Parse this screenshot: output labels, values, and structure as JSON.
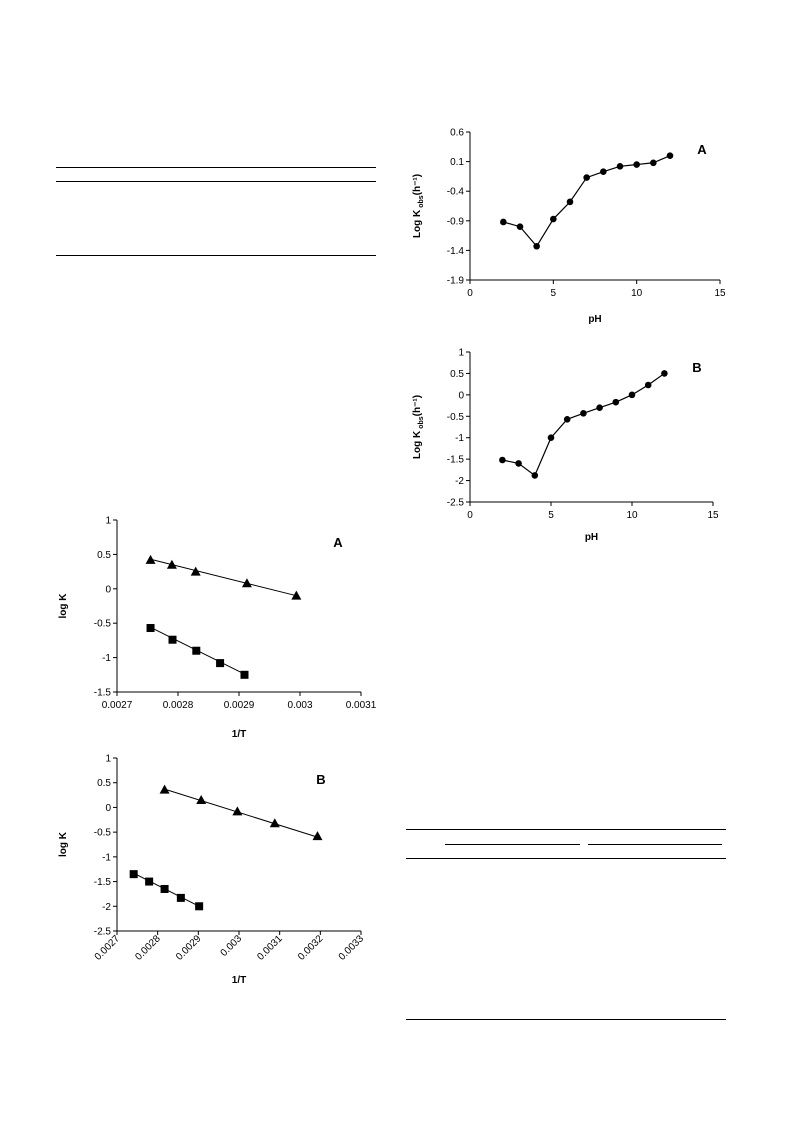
{
  "chart_data": [
    {
      "id": "ph-a",
      "type": "line",
      "panel_label": "A",
      "xlabel": "pH",
      "ylabel": "Log K",
      "ylabel_sub": "obs",
      "ylabel_unit": "(h⁻¹)",
      "xlim": [
        0,
        15
      ],
      "ylim": [
        -1.9,
        0.6
      ],
      "xticks": [
        0,
        5,
        10,
        15
      ],
      "yticks": [
        0.6,
        0.1,
        -0.4,
        -0.9,
        -1.4,
        -1.9
      ],
      "ytick_labels": [
        "0.6",
        "0.1",
        "-0.4",
        "-0.9",
        "-1.4",
        "-1.9"
      ],
      "grid": false,
      "series": [
        {
          "marker": "circle",
          "x": [
            2,
            3,
            4,
            5,
            6,
            7,
            8,
            9,
            10,
            11,
            12
          ],
          "y": [
            -0.92,
            -1.0,
            -1.33,
            -0.87,
            -0.58,
            -0.17,
            -0.07,
            0.02,
            0.05,
            0.08,
            0.2
          ]
        }
      ]
    },
    {
      "id": "ph-b",
      "type": "line",
      "panel_label": "B",
      "xlabel": "pH",
      "ylabel": "Log K",
      "ylabel_sub": "obs",
      "ylabel_unit": "(h⁻¹)",
      "xlim": [
        0,
        15
      ],
      "ylim": [
        -2.5,
        1
      ],
      "xticks": [
        0,
        5,
        10,
        15
      ],
      "yticks": [
        1,
        0.5,
        0,
        -0.5,
        -1,
        -1.5,
        -2,
        -2.5
      ],
      "ytick_labels": [
        "1",
        "0.5",
        "0",
        "-0.5",
        "-1",
        "-1.5",
        "-2",
        "-2.5"
      ],
      "grid": false,
      "series": [
        {
          "marker": "circle",
          "x": [
            2,
            3,
            4,
            5,
            6,
            7,
            8,
            9,
            10,
            11,
            12
          ],
          "y": [
            -1.52,
            -1.6,
            -1.88,
            -1.0,
            -0.57,
            -0.43,
            -0.3,
            -0.17,
            0.0,
            0.23,
            0.5
          ]
        }
      ]
    },
    {
      "id": "arrhenius-a",
      "type": "scatter",
      "panel_label": "A",
      "xlabel": "1/T",
      "ylabel": "log K",
      "xlim": [
        0.0027,
        0.0031
      ],
      "ylim": [
        -1.5,
        1
      ],
      "xticks": [
        0.0027,
        0.0028,
        0.0029,
        0.003,
        0.0031
      ],
      "xtick_labels": [
        "0.0027",
        "0.0028",
        "0.0029",
        "0.003",
        "0.0031"
      ],
      "yticks": [
        1,
        0.5,
        0,
        -0.5,
        -1,
        -1.5
      ],
      "ytick_labels": [
        "1",
        "0.5",
        "0",
        "-0.5",
        "-1",
        "-1.5"
      ],
      "rotate_xticks": false,
      "grid": false,
      "series": [
        {
          "marker": "triangle",
          "x": [
            0.002755,
            0.00279,
            0.002829,
            0.002913,
            0.002994
          ],
          "y": [
            0.42,
            0.35,
            0.25,
            0.08,
            -0.1
          ],
          "fit": [
            [
              0.002755,
              0.43
            ],
            [
              0.002994,
              -0.1
            ]
          ]
        },
        {
          "marker": "square",
          "x": [
            0.002755,
            0.002791,
            0.00283,
            0.002869,
            0.002909
          ],
          "y": [
            -0.57,
            -0.74,
            -0.9,
            -1.08,
            -1.25
          ],
          "fit": [
            [
              0.002755,
              -0.56
            ],
            [
              0.002909,
              -1.24
            ]
          ]
        }
      ]
    },
    {
      "id": "arrhenius-b",
      "type": "scatter",
      "panel_label": "B",
      "xlabel": "1/T",
      "ylabel": "log K",
      "xlim": [
        0.0027,
        0.0033
      ],
      "ylim": [
        -2.5,
        1
      ],
      "xticks": [
        0.0027,
        0.0028,
        0.0029,
        0.003,
        0.0031,
        0.0032,
        0.0033
      ],
      "xtick_labels": [
        "0.0027",
        "0.0028",
        "0.0029",
        "0.003",
        "0.0031",
        "0.0032",
        "0.0033"
      ],
      "yticks": [
        1,
        0.5,
        0,
        -0.5,
        -1,
        -1.5,
        -2,
        -2.5
      ],
      "ytick_labels": [
        "1",
        "0.5",
        "0",
        "-0.5",
        "-1",
        "-1.5",
        "-2",
        "-2.5"
      ],
      "rotate_xticks": true,
      "grid": false,
      "series": [
        {
          "marker": "triangle",
          "x": [
            0.002817,
            0.002907,
            0.002996,
            0.003088,
            0.003193
          ],
          "y": [
            0.36,
            0.15,
            -0.08,
            -0.32,
            -0.58
          ],
          "fit": [
            [
              0.002817,
              0.37
            ],
            [
              0.003193,
              -0.6
            ]
          ]
        },
        {
          "marker": "square",
          "x": [
            0.002741,
            0.002779,
            0.002817,
            0.002857,
            0.002902
          ],
          "y": [
            -1.35,
            -1.5,
            -1.65,
            -1.83,
            -2.0
          ],
          "fit": [
            [
              0.002741,
              -1.33
            ],
            [
              0.002902,
              -2.0
            ]
          ]
        }
      ]
    }
  ]
}
